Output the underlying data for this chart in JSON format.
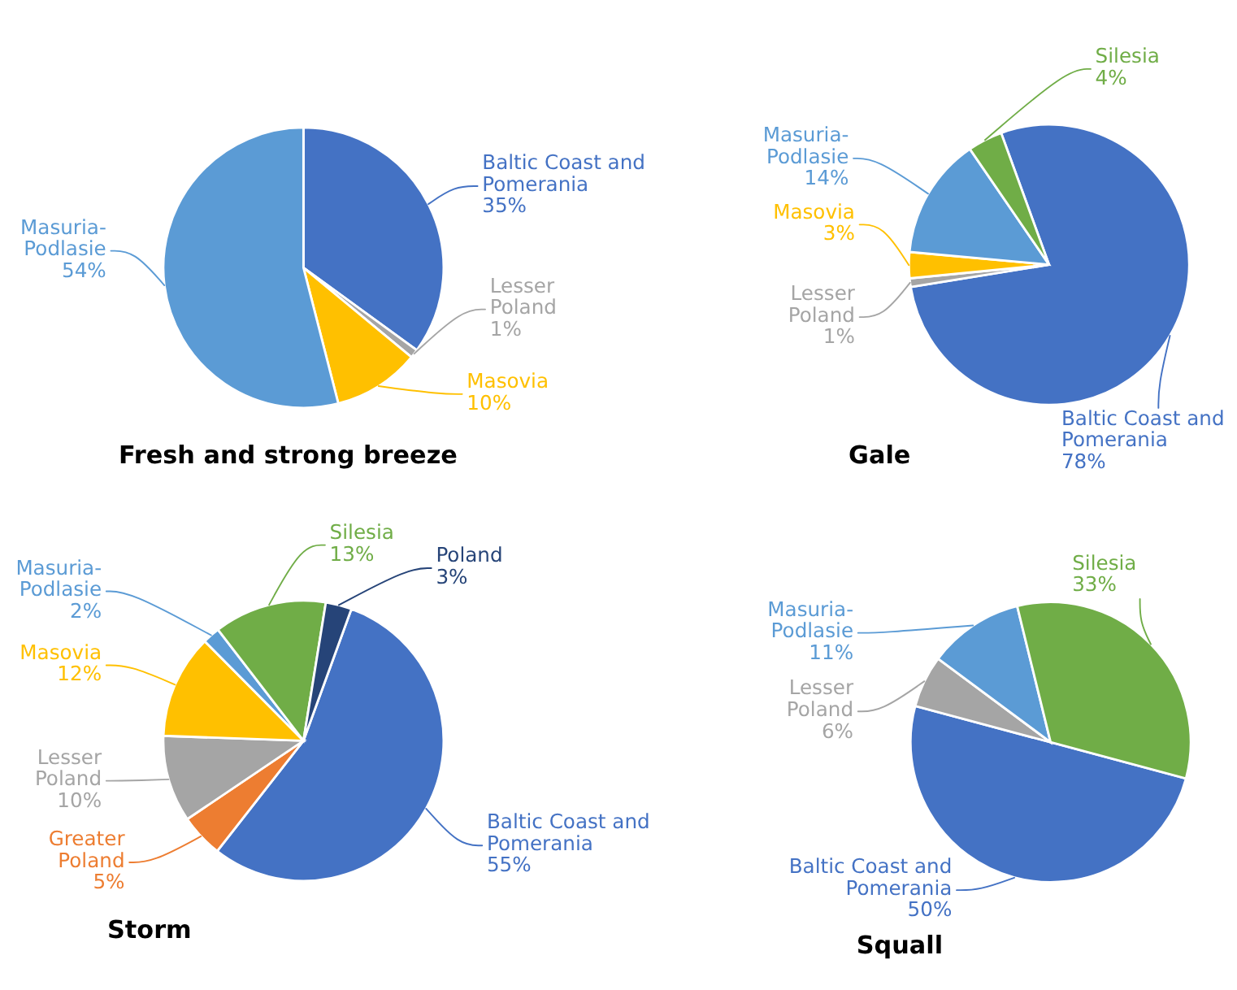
{
  "chart_data": [
    {
      "type": "pie",
      "title": "Fresh and strong breeze",
      "categories": [
        "Baltic Coast and Pomerania",
        "Lesser Poland",
        "Masovia",
        "Masuria-Podlasie"
      ],
      "values": [
        35,
        1,
        10,
        54
      ],
      "colors": [
        "#4472c4",
        "#a5a5a5",
        "#ffc000",
        "#5b9bd5"
      ],
      "value_labels": [
        "35%",
        "1%",
        "10%",
        "54%"
      ]
    },
    {
      "type": "pie",
      "title": "Gale",
      "categories": [
        "Baltic Coast and Pomerania",
        "Lesser Poland",
        "Masovia",
        "Masuria-Podlasie",
        "Silesia"
      ],
      "values": [
        78,
        1,
        3,
        14,
        4
      ],
      "colors": [
        "#4472c4",
        "#a5a5a5",
        "#ffc000",
        "#5b9bd5",
        "#70ad47"
      ],
      "value_labels": [
        "78%",
        "1%",
        "3%",
        "14%",
        "4%"
      ]
    },
    {
      "type": "pie",
      "title": "Storm",
      "categories": [
        "Baltic Coast and Pomerania",
        "Greater Poland",
        "Lesser Poland",
        "Masovia",
        "Masuria-Podlasie",
        "Silesia",
        "Poland"
      ],
      "values": [
        55,
        5,
        10,
        12,
        2,
        13,
        3
      ],
      "colors": [
        "#4472c4",
        "#ed7d31",
        "#a5a5a5",
        "#ffc000",
        "#5b9bd5",
        "#70ad47",
        "#264478"
      ],
      "value_labels": [
        "55%",
        "5%",
        "10%",
        "12%",
        "2%",
        "13%",
        "3%"
      ]
    },
    {
      "type": "pie",
      "title": "Squall",
      "categories": [
        "Baltic Coast and Pomerania",
        "Lesser Poland",
        "Masuria-Podlasie",
        "Silesia"
      ],
      "values": [
        50,
        6,
        11,
        33
      ],
      "colors": [
        "#4472c4",
        "#a5a5a5",
        "#5b9bd5",
        "#70ad47"
      ],
      "value_labels": [
        "50%",
        "6%",
        "11%",
        "33%"
      ]
    }
  ]
}
